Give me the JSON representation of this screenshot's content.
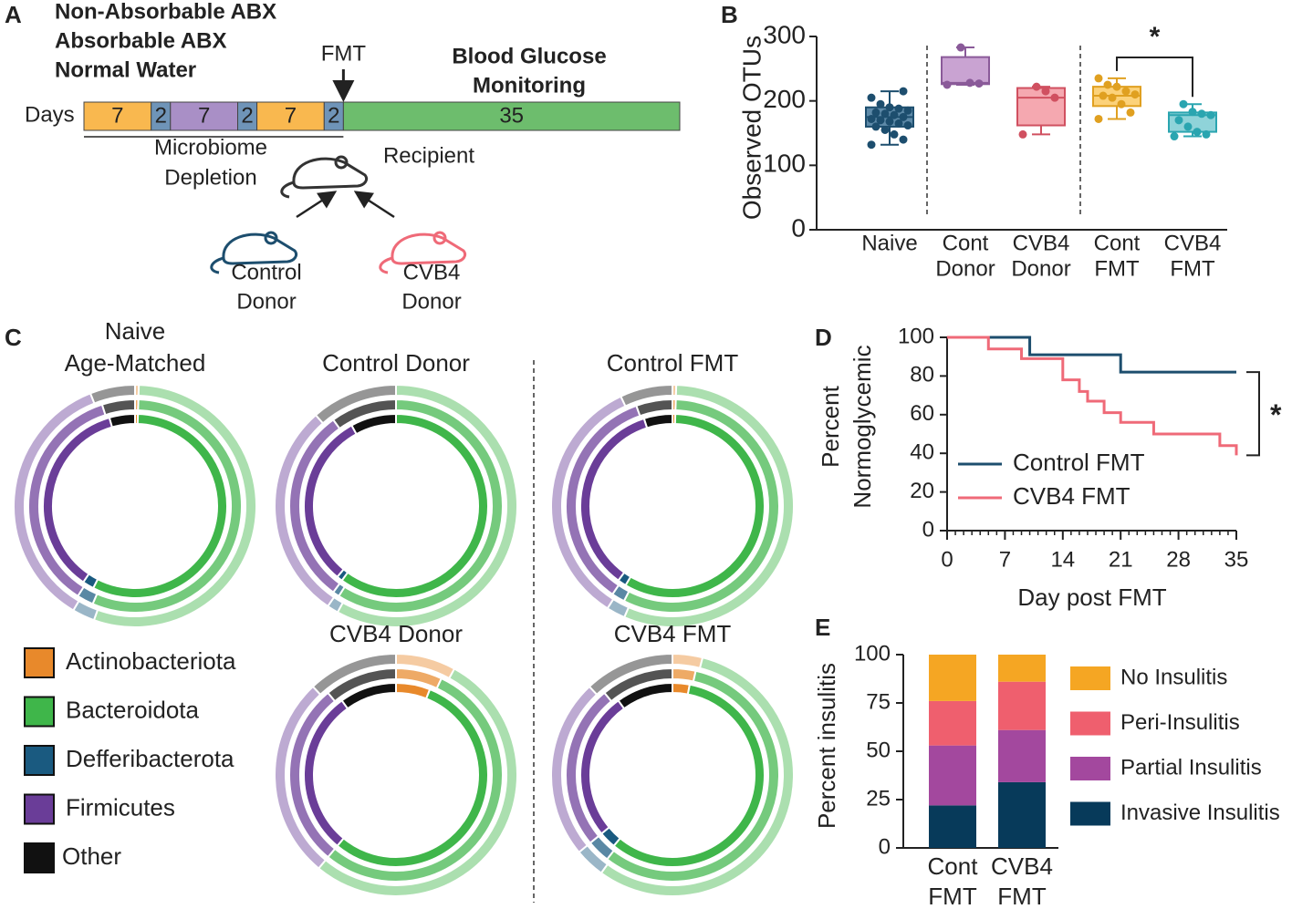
{
  "panels": [
    "A",
    "B",
    "C",
    "D",
    "E"
  ],
  "timeline": {
    "legend": [
      {
        "label": "Non-Absorbable ABX",
        "color": "#f5a623"
      },
      {
        "label": "Absorbable ABX",
        "color": "#a57dc0"
      },
      {
        "label": "Normal Water",
        "color": "#6b8cbf"
      }
    ],
    "axis_label": "Days",
    "segments": [
      {
        "days": 7,
        "color": "#f9b84f"
      },
      {
        "days": 2,
        "color": "#6f94b8"
      },
      {
        "days": 7,
        "color": "#a98fc6"
      },
      {
        "days": 2,
        "color": "#6f94b8"
      },
      {
        "days": 7,
        "color": "#f9b84f"
      },
      {
        "days": 2,
        "color": "#6f94b8"
      },
      {
        "days": 35,
        "color": "#6dbd6d"
      }
    ],
    "fmt_label": "FMT",
    "monitoring": [
      "Blood Glucose",
      "Monitoring"
    ],
    "depletion": [
      "Microbiome",
      "Depletion"
    ],
    "recipient": "Recipient",
    "control_donor": [
      "Control",
      "Donor"
    ],
    "cvb4_donor": [
      "CVB4",
      "Donor"
    ]
  },
  "phyla_legend": [
    {
      "name": "Actinobacteriota",
      "color": "#e8892b"
    },
    {
      "name": "Bacteroidota",
      "color": "#3fb64a"
    },
    {
      "name": "Defferibacterota",
      "color": "#1a5a80"
    },
    {
      "name": "Firmicutes",
      "color": "#6a3d98"
    },
    {
      "name": "Other",
      "color": "#111111"
    }
  ],
  "chart_data": [
    {
      "type": "box",
      "ylabel": "Observed OTUs",
      "categories": [
        [
          "Naive"
        ],
        [
          "Cont",
          "Donor"
        ],
        [
          "CVB4",
          "Donor"
        ],
        [
          "Cont",
          "FMT"
        ],
        [
          "CVB4",
          "FMT"
        ]
      ],
      "boxes": [
        {
          "min": 132,
          "q1": 160,
          "median": 175,
          "q3": 190,
          "max": 215,
          "color": "#1d4e6e",
          "fill": "#5e8aa8",
          "points": [
            132,
            140,
            148,
            155,
            160,
            162,
            165,
            168,
            170,
            172,
            175,
            178,
            180,
            182,
            185,
            188,
            190,
            195,
            205,
            215
          ]
        },
        {
          "min": 225,
          "q1": 226,
          "median": 228,
          "q3": 268,
          "max": 283,
          "color": "#8a5a99",
          "fill": "#c9a3d2",
          "points": [
            225,
            227,
            228,
            283
          ]
        },
        {
          "min": 148,
          "q1": 162,
          "median": 205,
          "q3": 220,
          "max": 222,
          "color": "#d05060",
          "fill": "#f5a8b0",
          "points": [
            148,
            205,
            215,
            222
          ]
        },
        {
          "min": 172,
          "q1": 192,
          "median": 208,
          "q3": 222,
          "max": 235,
          "color": "#e0a020",
          "fill": "#fcd27a",
          "points": [
            172,
            182,
            195,
            205,
            208,
            210,
            215,
            222,
            225,
            235
          ]
        },
        {
          "min": 145,
          "q1": 152,
          "median": 178,
          "q3": 182,
          "max": 195,
          "color": "#2aa5b0",
          "fill": "#8fd3d9",
          "points": [
            145,
            148,
            152,
            160,
            170,
            178,
            180,
            183,
            195
          ]
        }
      ],
      "ylim": [
        0,
        300
      ],
      "yticks": [
        0,
        100,
        200,
        300
      ],
      "annotation": "*"
    },
    {
      "type": "step",
      "xlabel": "Day post FMT",
      "ylabel": [
        "Percent",
        "Normoglycemic"
      ],
      "xlim": [
        0,
        35
      ],
      "xticks": [
        0,
        7,
        14,
        21,
        28,
        35
      ],
      "ylim": [
        0,
        100
      ],
      "yticks": [
        0,
        20,
        40,
        60,
        80,
        100
      ],
      "legend": "lower-left",
      "annotation": "*",
      "series": [
        {
          "name": "Control FMT",
          "color": "#1d4e6e",
          "x": [
            0,
            10,
            10,
            21,
            21,
            35
          ],
          "values": [
            100,
            100,
            91,
            91,
            82,
            82
          ]
        },
        {
          "name": "CVB4 FMT",
          "color": "#ef6a78",
          "x": [
            0,
            5,
            5,
            9,
            9,
            14,
            14,
            16,
            16,
            17,
            17,
            19,
            19,
            21,
            21,
            25,
            25,
            33,
            33,
            35,
            35
          ],
          "values": [
            100,
            100,
            94,
            94,
            89,
            89,
            78,
            78,
            72,
            72,
            67,
            67,
            61,
            61,
            56,
            56,
            50,
            50,
            44,
            44,
            39
          ]
        }
      ]
    },
    {
      "type": "stacked_bar",
      "ylabel": "Percent insulitis",
      "categories": [
        [
          "Cont",
          "FMT"
        ],
        [
          "CVB4",
          "FMT"
        ]
      ],
      "ylim": [
        0,
        100
      ],
      "yticks": [
        0,
        25,
        50,
        75,
        100
      ],
      "series": [
        {
          "name": "Invasive Insulitis",
          "color": "#073a5a",
          "values": [
            22,
            34
          ]
        },
        {
          "name": "Partial Insulitis",
          "color": "#a3489e",
          "values": [
            31,
            27
          ]
        },
        {
          "name": "Peri-Insulitis",
          "color": "#ef5f6e",
          "values": [
            23,
            25
          ]
        },
        {
          "name": "No Insulitis",
          "color": "#f5a623",
          "values": [
            24,
            14
          ]
        }
      ]
    },
    {
      "type": "donut",
      "title": [
        "Naive",
        "Age-Matched"
      ],
      "rings": [
        [
          0.5,
          57,
          2,
          36,
          4.5
        ],
        [
          0.5,
          56,
          2.5,
          36,
          5
        ],
        [
          0.5,
          55,
          3,
          35.5,
          6
        ]
      ]
    },
    {
      "type": "donut",
      "title": [
        "Control Donor"
      ],
      "rings": [
        [
          0,
          60,
          1,
          31,
          8
        ],
        [
          0,
          59,
          1,
          30,
          10
        ],
        [
          0,
          58,
          1.5,
          29,
          11.5
        ]
      ]
    },
    {
      "type": "donut",
      "title": [
        "Control FMT"
      ],
      "rings": [
        [
          0.5,
          58,
          1.5,
          35,
          5
        ],
        [
          0.5,
          57,
          2,
          35,
          5.5
        ],
        [
          0.5,
          56,
          2.5,
          34,
          7
        ]
      ]
    },
    {
      "type": "donut",
      "title": [
        "CVB4 Donor"
      ],
      "rings": [
        [
          6,
          55,
          0,
          29,
          10
        ],
        [
          7,
          54,
          0,
          28,
          11
        ],
        [
          8,
          53,
          0,
          27,
          12
        ]
      ]
    },
    {
      "type": "donut",
      "title": [
        "CVB4 FMT"
      ],
      "rings": [
        [
          3,
          58,
          3,
          26,
          10
        ],
        [
          3.5,
          57,
          3.5,
          25,
          11
        ],
        [
          4,
          56,
          4,
          24,
          12
        ]
      ]
    }
  ]
}
